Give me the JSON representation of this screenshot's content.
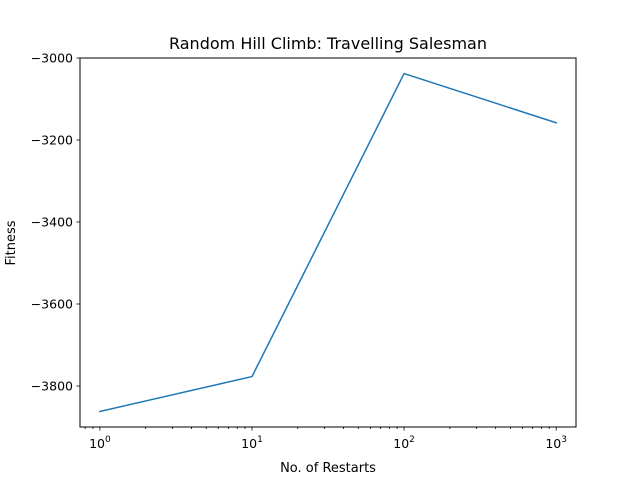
{
  "chart_data": {
    "type": "line",
    "title": "Random Hill Climb: Travelling Salesman",
    "xlabel": "No. of Restarts",
    "ylabel": "Fitness",
    "xscale": "log",
    "xlim": [
      0.74,
      1350
    ],
    "ylim": [
      -3900,
      -3000
    ],
    "grid": false,
    "series": [
      {
        "x": [
          1,
          10,
          100,
          1000
        ],
        "values": [
          -3862,
          -3777,
          -3038,
          -3158
        ],
        "color": "#1f77b4"
      }
    ],
    "x_ticks": [
      {
        "base": "10",
        "exp": "0",
        "value": 1
      },
      {
        "base": "10",
        "exp": "1",
        "value": 10
      },
      {
        "base": "10",
        "exp": "2",
        "value": 100
      },
      {
        "base": "10",
        "exp": "3",
        "value": 1000
      }
    ],
    "y_ticks": [
      {
        "label": "−3000",
        "value": -3000
      },
      {
        "label": "−3200",
        "value": -3200
      },
      {
        "label": "−3400",
        "value": -3400
      },
      {
        "label": "−3600",
        "value": -3600
      },
      {
        "label": "−3800",
        "value": -3800
      }
    ]
  }
}
